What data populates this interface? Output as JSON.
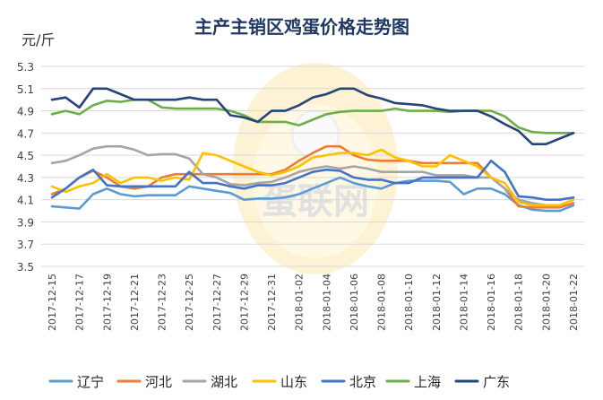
{
  "chart_data": {
    "type": "line",
    "title": "主产主销区鸡蛋价格走势图",
    "ylabel": "元/斤",
    "xlabel": "",
    "ylim": [
      3.5,
      5.3
    ],
    "yticks": [
      3.5,
      3.7,
      3.9,
      4.1,
      4.3,
      4.5,
      4.7,
      4.9,
      5.1,
      5.3
    ],
    "ytick_labels": [
      "3.5",
      "3.7",
      "3.9",
      "4.1",
      "4.3",
      "4.5",
      "4.7",
      "4.9",
      "5.1",
      "5.3"
    ],
    "grid": "horizontal",
    "legend_position": "bottom",
    "watermark": "蛋联网",
    "x": [
      "2017-12-15",
      "2017-12-16",
      "2017-12-17",
      "2017-12-18",
      "2017-12-19",
      "2017-12-20",
      "2017-12-21",
      "2017-12-22",
      "2017-12-23",
      "2017-12-24",
      "2017-12-25",
      "2017-12-26",
      "2017-12-27",
      "2017-12-28",
      "2017-12-29",
      "2017-12-30",
      "2017-12-31",
      "2018-01-01",
      "2018-01-02",
      "2018-01-03",
      "2018-01-04",
      "2018-01-05",
      "2018-01-06",
      "2018-01-07",
      "2018-01-08",
      "2018-01-09",
      "2018-01-10",
      "2018-01-11",
      "2018-01-12",
      "2018-01-13",
      "2018-01-14",
      "2018-01-15",
      "2018-01-16",
      "2018-01-17",
      "2018-01-18",
      "2018-01-19",
      "2018-01-20",
      "2018-01-21",
      "2018-01-22"
    ],
    "x_tick_labels": [
      "2017-12-15",
      "2017-12-17",
      "2017-12-19",
      "2017-12-21",
      "2017-12-23",
      "2017-12-25",
      "2017-12-27",
      "2017-12-29",
      "2017-12-31",
      "2018-01-02",
      "2018-01-04",
      "2018-01-06",
      "2018-01-08",
      "2018-01-10",
      "2018-01-12",
      "2018-01-14",
      "2018-01-16",
      "2018-01-18",
      "2018-01-20",
      "2018-01-22"
    ],
    "series": [
      {
        "name": "辽宁",
        "color": "#5b9bd5",
        "values": [
          4.04,
          4.03,
          4.02,
          4.15,
          4.2,
          4.15,
          4.13,
          4.14,
          4.14,
          4.14,
          4.22,
          4.2,
          4.18,
          4.16,
          4.1,
          4.11,
          4.11,
          4.12,
          4.15,
          4.2,
          4.25,
          4.3,
          4.25,
          4.22,
          4.2,
          4.25,
          4.27,
          4.27,
          4.27,
          4.26,
          4.15,
          4.2,
          4.2,
          4.15,
          4.05,
          4.01,
          4.0,
          4.0,
          4.05
        ]
      },
      {
        "name": "河北",
        "color": "#ed7d31",
        "values": [
          4.15,
          4.2,
          4.3,
          4.36,
          4.3,
          4.22,
          4.2,
          4.22,
          4.3,
          4.33,
          4.33,
          4.33,
          4.33,
          4.33,
          4.33,
          4.33,
          4.33,
          4.37,
          4.45,
          4.52,
          4.58,
          4.58,
          4.5,
          4.46,
          4.45,
          4.45,
          4.45,
          4.43,
          4.43,
          4.43,
          4.43,
          4.43,
          4.3,
          4.2,
          4.04,
          4.03,
          4.03,
          4.03,
          4.07
        ]
      },
      {
        "name": "湖北",
        "color": "#a5a5a5",
        "values": [
          4.43,
          4.45,
          4.5,
          4.56,
          4.58,
          4.58,
          4.55,
          4.5,
          4.51,
          4.51,
          4.47,
          4.33,
          4.3,
          4.24,
          4.23,
          4.25,
          4.26,
          4.3,
          4.35,
          4.38,
          4.4,
          4.38,
          4.4,
          4.38,
          4.35,
          4.35,
          4.35,
          4.35,
          4.32,
          4.32,
          4.32,
          4.3,
          4.3,
          4.2,
          4.1,
          4.07,
          4.05,
          4.05,
          4.1
        ]
      },
      {
        "name": "山东",
        "color": "#ffc000",
        "values": [
          4.22,
          4.17,
          4.22,
          4.25,
          4.33,
          4.25,
          4.3,
          4.3,
          4.27,
          4.3,
          4.28,
          4.52,
          4.5,
          4.45,
          4.4,
          4.35,
          4.32,
          4.35,
          4.4,
          4.48,
          4.5,
          4.52,
          4.52,
          4.5,
          4.55,
          4.48,
          4.45,
          4.4,
          4.4,
          4.5,
          4.45,
          4.4,
          4.3,
          4.25,
          4.08,
          4.05,
          4.05,
          4.05,
          4.1
        ]
      },
      {
        "name": "北京",
        "color": "#4472c4",
        "values": [
          4.12,
          4.2,
          4.3,
          4.37,
          4.23,
          4.22,
          4.22,
          4.22,
          4.22,
          4.22,
          4.35,
          4.25,
          4.25,
          4.22,
          4.2,
          4.23,
          4.23,
          4.25,
          4.3,
          4.35,
          4.37,
          4.36,
          4.3,
          4.28,
          4.28,
          4.25,
          4.25,
          4.3,
          4.3,
          4.3,
          4.3,
          4.3,
          4.45,
          4.35,
          4.13,
          4.12,
          4.1,
          4.1,
          4.12
        ]
      },
      {
        "name": "上海",
        "color": "#70ad47",
        "values": [
          4.87,
          4.9,
          4.87,
          4.95,
          4.99,
          4.98,
          5.0,
          5.0,
          4.93,
          4.92,
          4.92,
          4.92,
          4.92,
          4.9,
          4.86,
          4.8,
          4.8,
          4.8,
          4.77,
          4.82,
          4.87,
          4.89,
          4.9,
          4.9,
          4.9,
          4.92,
          4.9,
          4.9,
          4.9,
          4.89,
          4.9,
          4.9,
          4.9,
          4.85,
          4.75,
          4.71,
          4.7,
          4.7,
          4.7
        ]
      },
      {
        "name": "广东",
        "color": "#264478",
        "values": [
          5.0,
          5.02,
          4.93,
          5.1,
          5.1,
          5.05,
          5.0,
          5.0,
          5.0,
          5.0,
          5.02,
          5.0,
          5.0,
          4.86,
          4.84,
          4.8,
          4.9,
          4.9,
          4.95,
          5.02,
          5.05,
          5.1,
          5.1,
          5.04,
          5.01,
          4.97,
          4.96,
          4.95,
          4.92,
          4.9,
          4.9,
          4.9,
          4.85,
          4.78,
          4.72,
          4.6,
          4.6,
          4.65,
          4.7
        ]
      }
    ]
  }
}
